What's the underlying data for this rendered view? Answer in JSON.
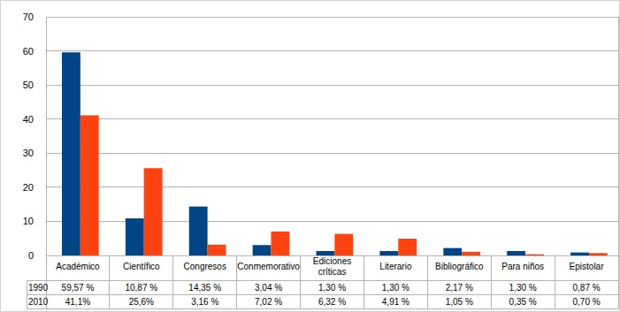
{
  "chart_data": {
    "type": "bar",
    "categories": [
      "Académico",
      "Científico",
      "Congresos",
      "Conmemorativo",
      "Ediciones críticas",
      "Literario",
      "Bibliográfico",
      "Para niños",
      "Epistolar"
    ],
    "series": [
      {
        "name": "1990",
        "color": "#004586",
        "values": [
          59.57,
          10.87,
          14.35,
          3.04,
          1.3,
          1.3,
          2.17,
          1.3,
          0.87
        ],
        "value_labels": [
          "59,57 %",
          "10,87 %",
          "14,35 %",
          "3,04 %",
          "1,30 %",
          "1,30 %",
          "2,17 %",
          "1,30 %",
          "0,87 %"
        ]
      },
      {
        "name": "2010",
        "color": "#ff420e",
        "values": [
          41.1,
          25.6,
          3.16,
          7.02,
          6.32,
          4.91,
          1.05,
          0.35,
          0.7
        ],
        "value_labels": [
          "41,1%",
          "25,6%",
          "3,16 %",
          "7,02 %",
          "6,32 %",
          "4,91 %",
          "1,05 %",
          "0,35 %",
          "0,70 %"
        ]
      }
    ],
    "ylim": [
      0,
      70
    ],
    "yticks": [
      0,
      10,
      20,
      30,
      40,
      50,
      60,
      70
    ],
    "grid": true
  }
}
